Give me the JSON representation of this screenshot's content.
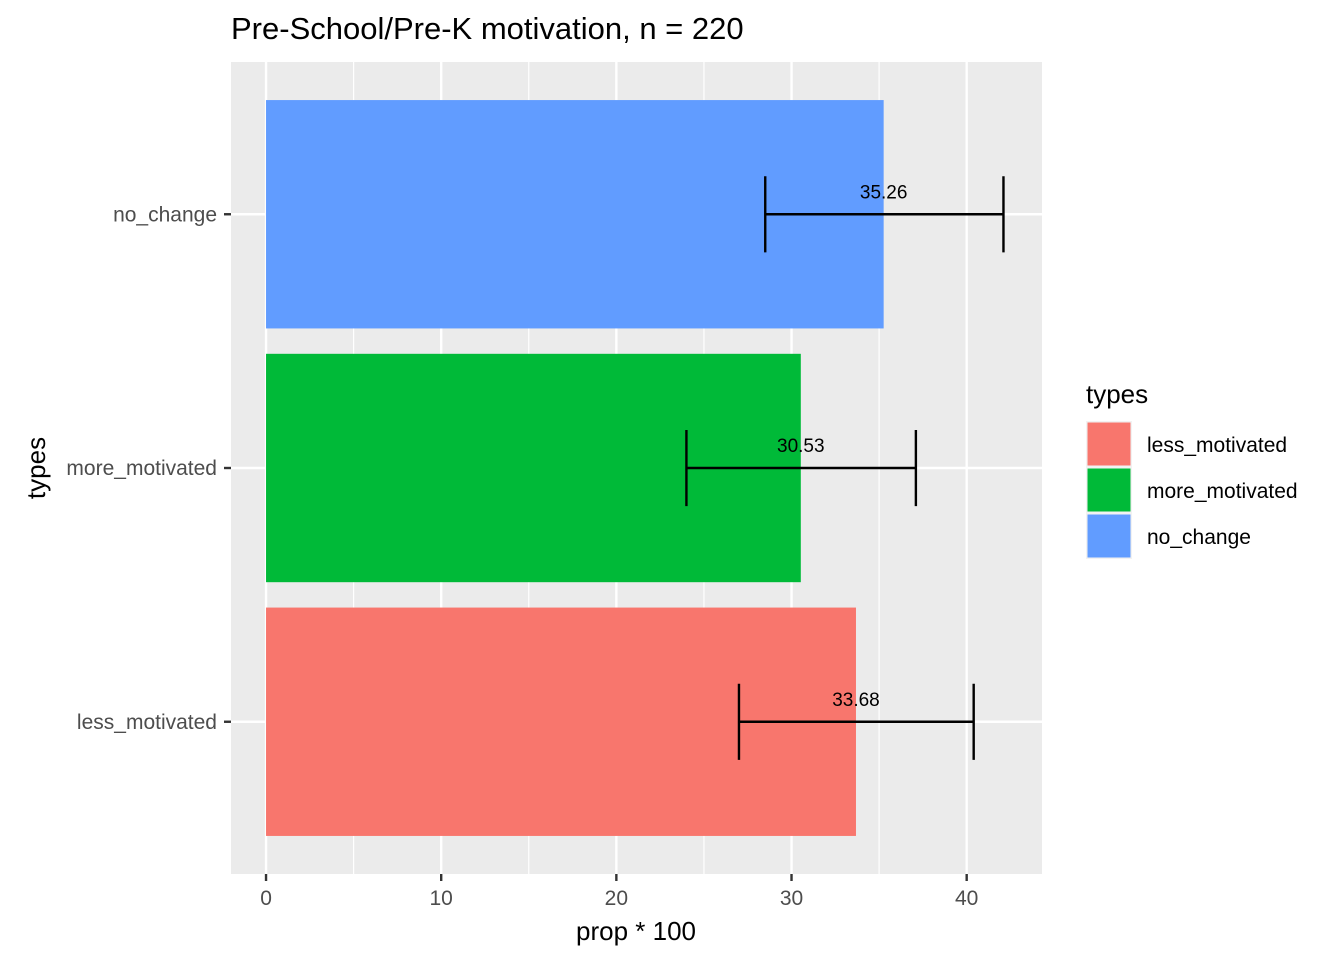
{
  "chart_data": {
    "type": "bar",
    "orientation": "horizontal",
    "title": "Pre-School/Pre-K motivation, n = 220",
    "xlabel": "prop * 100",
    "ylabel": "types",
    "xlim": [
      -2,
      44.3
    ],
    "x_ticks": [
      0,
      10,
      20,
      30,
      40
    ],
    "x_tick_labels": [
      "0",
      "10",
      "20",
      "30",
      "40"
    ],
    "categories": [
      "less_motivated",
      "more_motivated",
      "no_change"
    ],
    "values": [
      33.68,
      30.53,
      35.26
    ],
    "value_labels": [
      "33.68",
      "30.53",
      "35.26"
    ],
    "error_low": [
      27.0,
      24.0,
      28.5
    ],
    "error_high": [
      40.4,
      37.1,
      42.1
    ],
    "colors": [
      "#F8766D",
      "#00BA38",
      "#619CFF"
    ],
    "grid": true,
    "legend": {
      "title": "types",
      "placement": "right",
      "items": [
        "less_motivated",
        "more_motivated",
        "no_change"
      ]
    }
  }
}
